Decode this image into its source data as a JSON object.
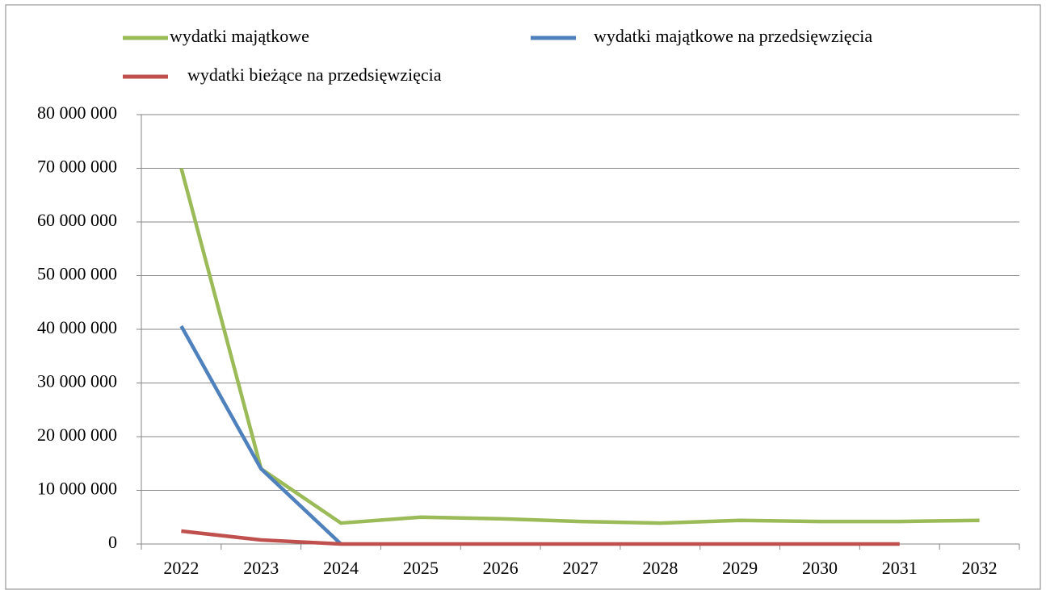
{
  "chart_data": {
    "type": "line",
    "categories": [
      "2022",
      "2023",
      "2024",
      "2025",
      "2026",
      "2027",
      "2028",
      "2029",
      "2030",
      "2031",
      "2032"
    ],
    "series": [
      {
        "name": "wydatki majątkowe",
        "color": "#9bbb59",
        "values": [
          70000000,
          14000000,
          3900000,
          5000000,
          4700000,
          4200000,
          3900000,
          4400000,
          4200000,
          4200000,
          4400000
        ]
      },
      {
        "name": "wydatki majątkowe na przedsięwzięcia",
        "color": "#4f81bd",
        "values": [
          40600000,
          14000000,
          0,
          null,
          null,
          null,
          null,
          null,
          null,
          null,
          null
        ]
      },
      {
        "name": "wydatki bieżące na przedsięwzięcia",
        "color": "#c0504d",
        "values": [
          2400000,
          750000,
          0,
          0,
          0,
          0,
          0,
          0,
          0,
          0,
          null
        ]
      }
    ],
    "ylim": [
      0,
      80000000
    ],
    "yticks": [
      {
        "value": 0,
        "label": "0"
      },
      {
        "value": 10000000,
        "label": "10 000 000"
      },
      {
        "value": 20000000,
        "label": "20 000 000"
      },
      {
        "value": 30000000,
        "label": "30 000 000"
      },
      {
        "value": 40000000,
        "label": "40 000 000"
      },
      {
        "value": 50000000,
        "label": "50 000 000"
      },
      {
        "value": 60000000,
        "label": "60 000 000"
      },
      {
        "value": 70000000,
        "label": "70 000 000"
      },
      {
        "value": 80000000,
        "label": "80 000 000"
      }
    ],
    "grid": true,
    "legend": "top"
  }
}
